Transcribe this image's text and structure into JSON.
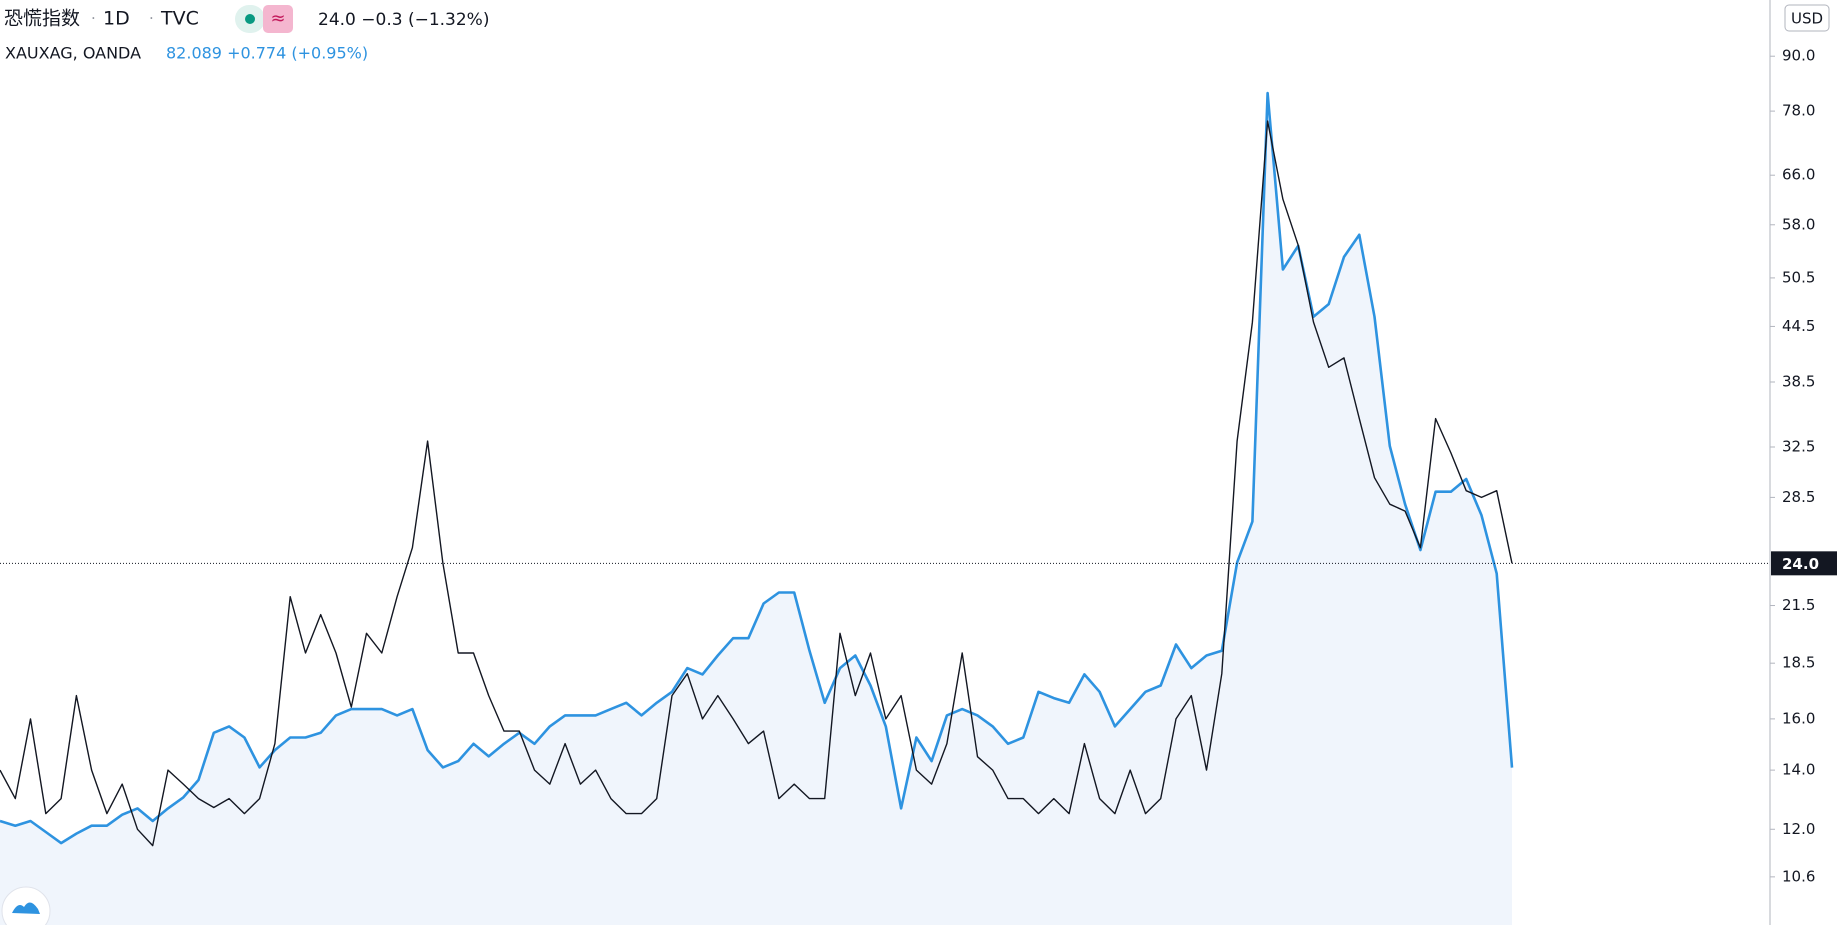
{
  "chart_data": {
    "type": "line",
    "interval": "1D",
    "source": "TVC",
    "currency": "USD",
    "log_scale": true,
    "ylim": [
      9.35,
      104.2
    ],
    "yticks": [
      {
        "value": 90,
        "label": "90.0"
      },
      {
        "value": 78,
        "label": "78.0"
      },
      {
        "value": 66,
        "label": "66.0"
      },
      {
        "value": 58,
        "label": "58.0"
      },
      {
        "value": 50.5,
        "label": "50.5"
      },
      {
        "value": 44.5,
        "label": "44.5"
      },
      {
        "value": 38.5,
        "label": "38.5"
      },
      {
        "value": 32.5,
        "label": "32.5"
      },
      {
        "value": 28.5,
        "label": "28.5"
      },
      {
        "value": 21.5,
        "label": "21.5"
      },
      {
        "value": 18.5,
        "label": "18.5"
      },
      {
        "value": 16,
        "label": "16.0"
      },
      {
        "value": 14,
        "label": "14.0"
      },
      {
        "value": 12,
        "label": "12.0"
      },
      {
        "value": 10.6,
        "label": "10.6"
      }
    ],
    "y2lim": [
      72.1,
      130.8
    ],
    "last_price": {
      "value": 24,
      "label": "24.0"
    },
    "series": [
      {
        "name": "恐慌指数",
        "quote": "24.0 −0.3 (−1.32%)",
        "color": "#131722",
        "values": [
          14,
          13,
          16,
          12.5,
          13,
          17,
          14,
          12.5,
          13.5,
          12,
          11.5,
          14,
          13.5,
          13,
          12.7,
          13,
          12.5,
          13,
          15,
          22,
          19,
          21,
          19,
          16.5,
          20,
          19,
          22,
          25,
          33,
          24,
          19,
          19,
          17,
          15.5,
          15.5,
          14,
          13.5,
          15,
          13.5,
          14,
          13,
          12.5,
          12.5,
          13,
          17,
          18,
          16,
          17,
          16,
          15,
          15.5,
          13,
          13.5,
          13,
          13,
          20,
          17,
          19,
          16,
          17,
          14,
          13.5,
          15,
          19,
          14.5,
          14,
          13,
          13,
          12.5,
          13,
          12.5,
          15,
          13,
          12.5,
          14,
          12.5,
          13,
          16,
          17,
          14,
          18,
          33,
          45,
          76,
          62,
          55,
          45,
          40,
          41,
          35,
          30,
          28,
          27.5,
          25,
          35,
          32,
          29,
          28.5,
          29,
          24
        ]
      },
      {
        "name": "XAUXAG, OANDA",
        "quote": "82.089 +0.774 (+0.95%)",
        "color": "#2e93e0",
        "axis": "y2",
        "area": true,
        "values": [
          78.7,
          78.4,
          78.7,
          78.0,
          77.3,
          77.9,
          78.4,
          78.4,
          79.1,
          79.5,
          78.7,
          79.5,
          80.2,
          81.3,
          84.3,
          84.7,
          84.0,
          82.1,
          83.2,
          84.0,
          84.0,
          84.3,
          85.4,
          85.8,
          85.8,
          85.8,
          85.4,
          85.8,
          83.2,
          82.1,
          82.5,
          83.6,
          82.8,
          83.6,
          84.3,
          83.6,
          84.7,
          85.4,
          85.4,
          85.4,
          85.8,
          86.2,
          85.4,
          86.2,
          86.9,
          88.4,
          88.0,
          89.2,
          90.3,
          90.3,
          92.5,
          93.2,
          93.2,
          89.5,
          86.2,
          88.4,
          89.2,
          87.3,
          84.7,
          79.5,
          84.0,
          82.5,
          85.4,
          85.8,
          85.4,
          84.7,
          83.6,
          84.0,
          86.9,
          86.5,
          86.2,
          88.0,
          86.9,
          84.7,
          85.8,
          86.9,
          87.3,
          89.9,
          88.4,
          89.2,
          89.5,
          95.1,
          97.7,
          124.9,
          113.7,
          115.2,
          110.7,
          111.5,
          114.5,
          115.9,
          110.7,
          102.5,
          98.8,
          95.9,
          99.6,
          99.6,
          100.4,
          98.1,
          94.4,
          82.089
        ]
      }
    ]
  }
}
